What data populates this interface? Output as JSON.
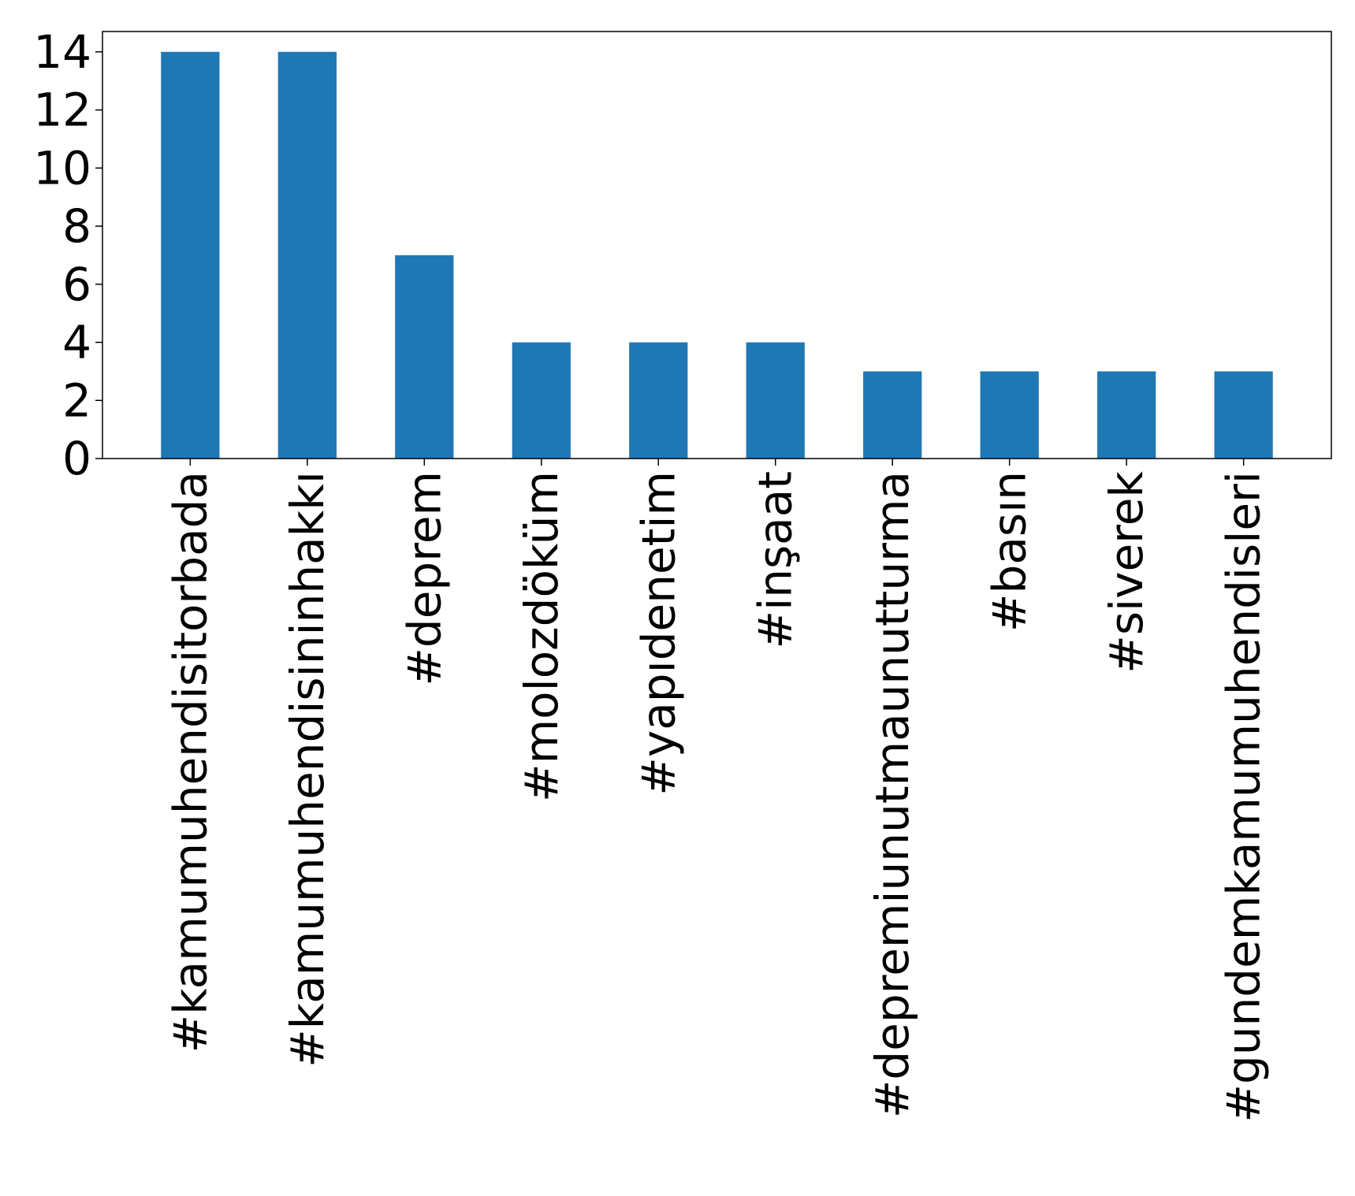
{
  "chart_data": {
    "type": "bar",
    "title": "",
    "xlabel": "",
    "ylabel": "",
    "categories": [
      "#kamumuhendisitorbada",
      "#kamumuhendisininhakkı",
      "#deprem",
      "#molozdöküm",
      "#yapıdenetim",
      "#inşaat",
      "#depremiunutmaunutturma",
      "#basın",
      "#siverek",
      "#gundemkamumuhendisleri"
    ],
    "values": [
      14,
      14,
      7,
      4,
      4,
      4,
      3,
      3,
      3,
      3
    ],
    "ylim": [
      0,
      14.7
    ],
    "yticks": [
      0,
      2,
      4,
      6,
      8,
      10,
      12,
      14
    ],
    "grid": false,
    "legend": "none",
    "bar_color": "#1f77b4"
  }
}
